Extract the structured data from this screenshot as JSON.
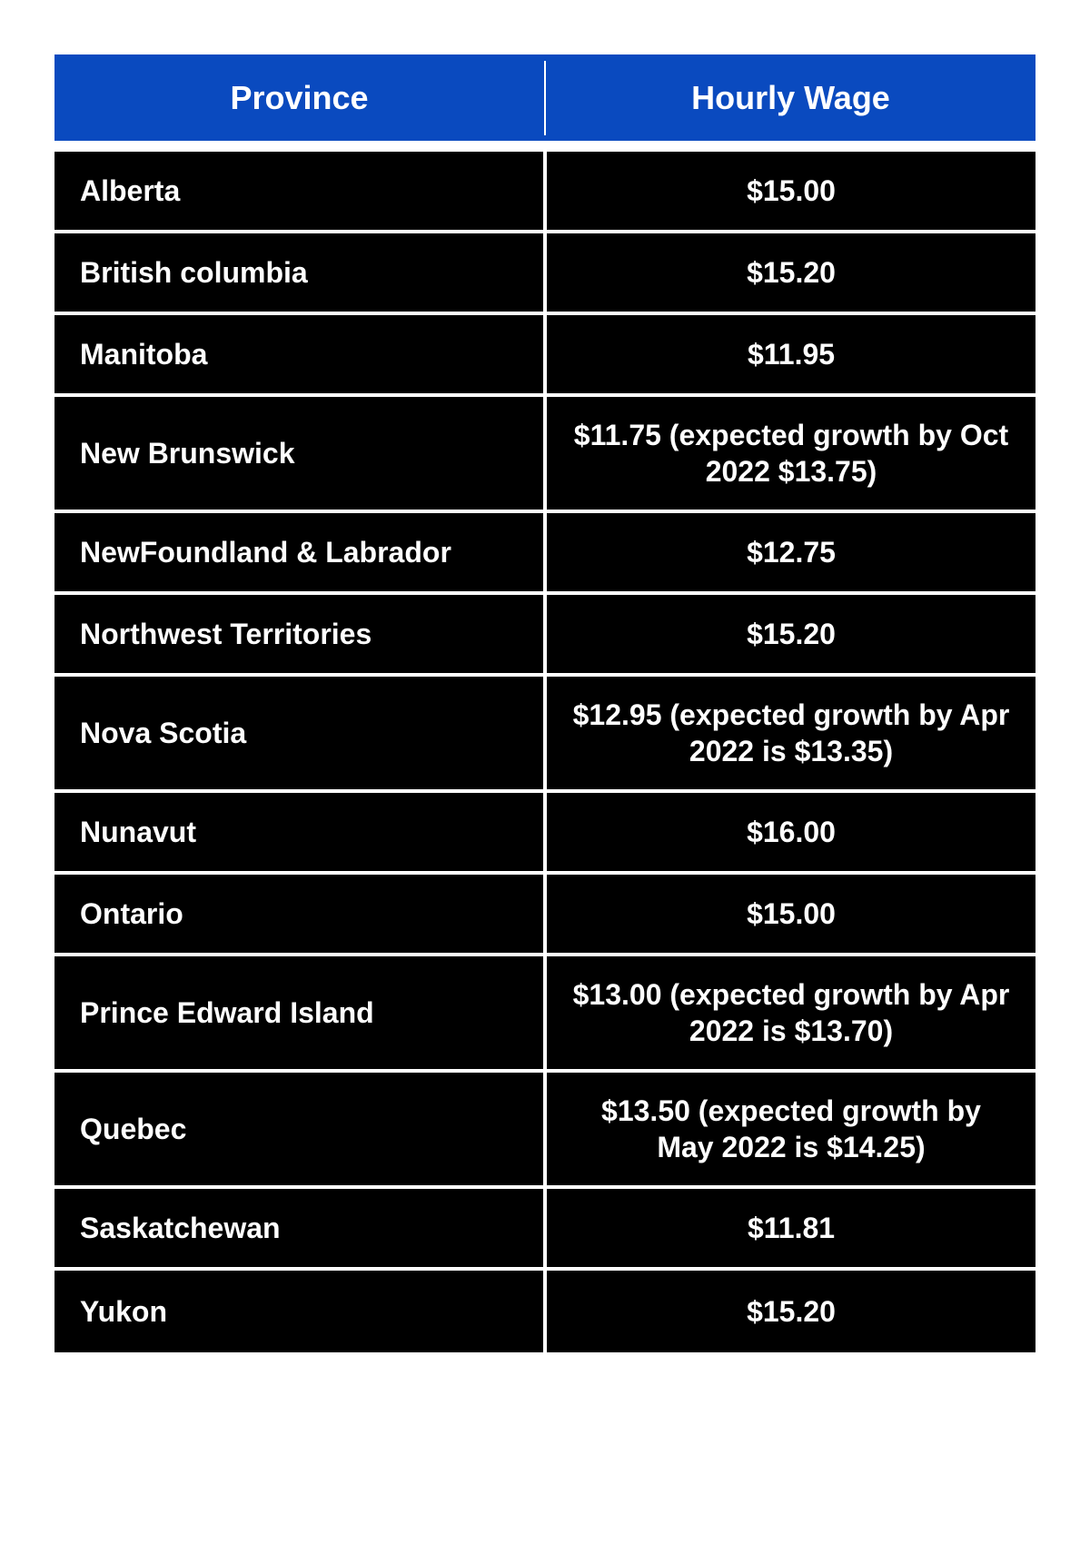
{
  "table": {
    "type": "table",
    "header_bg": "#0a4abf",
    "body_bg": "#000000",
    "text_color": "#ffffff",
    "border_color": "#ffffff",
    "header_fontsize": 36,
    "body_fontsize": 32,
    "columns": [
      {
        "label": "Province",
        "align": "left"
      },
      {
        "label": "Hourly Wage",
        "align": "center"
      }
    ],
    "rows": [
      {
        "province": "Alberta",
        "wage": "$15.00"
      },
      {
        "province": "British columbia",
        "wage": "$15.20"
      },
      {
        "province": "Manitoba",
        "wage": "$11.95"
      },
      {
        "province": "New Brunswick",
        "wage": "$11.75 (expected growth by Oct 2022 $13.75)"
      },
      {
        "province": "NewFoundland & Labrador",
        "wage": "$12.75"
      },
      {
        "province": "Northwest Territories",
        "wage": "$15.20"
      },
      {
        "province": "Nova Scotia",
        "wage": "$12.95 (expected growth by Apr 2022 is $13.35)"
      },
      {
        "province": "Nunavut",
        "wage": "$16.00"
      },
      {
        "province": "Ontario",
        "wage": "$15.00"
      },
      {
        "province": "Prince Edward Island",
        "wage": "$13.00 (expected growth by Apr 2022 is $13.70)"
      },
      {
        "province": "Quebec",
        "wage": "$13.50 (expected growth by May 2022 is $14.25)"
      },
      {
        "province": "Saskatchewan",
        "wage": "$11.81"
      },
      {
        "province": "Yukon",
        "wage": "$15.20"
      }
    ]
  }
}
